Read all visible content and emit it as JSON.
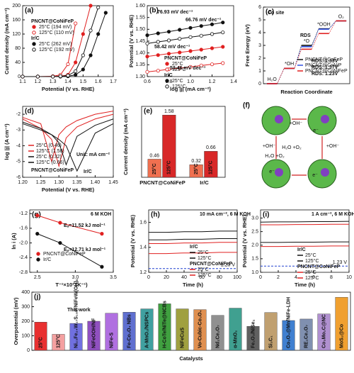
{
  "chart_data": [
    {
      "type": "line",
      "label": "(a)",
      "xlabel": "Potential (V vs. RHE)",
      "ylabel": "Current density (mA cm⁻²)",
      "xlim": [
        1.1,
        1.7
      ],
      "xticks": [
        1.1,
        1.2,
        1.3,
        1.4,
        1.5,
        1.6,
        1.7
      ],
      "ylim": [
        0,
        200
      ],
      "yticks": [
        0,
        40,
        80,
        120,
        160,
        200
      ],
      "x": [
        1.1,
        1.2,
        1.3,
        1.35,
        1.4,
        1.45,
        1.5,
        1.55,
        1.6,
        1.65,
        1.7
      ],
      "legend_groups": [
        "PNCNT@CoNiFeP",
        "Ir/C"
      ],
      "series": [
        {
          "name": "25°C (194 mV)",
          "color": "#e02020",
          "marker": "filled",
          "values": [
            0,
            0,
            0,
            1,
            5,
            40,
            120,
            200,
            null,
            null,
            null
          ]
        },
        {
          "name": "125°C (110 mV)",
          "color": "#e02020",
          "marker": "open",
          "values": [
            0,
            0,
            1,
            5,
            35,
            150,
            null,
            null,
            null,
            null,
            null
          ]
        },
        {
          "name": "25°C (262 mV)",
          "color": "#111111",
          "marker": "filled",
          "values": [
            0,
            0,
            0,
            0,
            1,
            5,
            20,
            60,
            120,
            180,
            null
          ]
        },
        {
          "name": "125°C (192 mV)",
          "color": "#111111",
          "marker": "open",
          "values": [
            0,
            0,
            0,
            1,
            3,
            15,
            60,
            130,
            195,
            null,
            null
          ]
        }
      ]
    },
    {
      "type": "scatter",
      "label": "(b)",
      "xlabel": "log |j| (mA cm⁻²)",
      "ylabel": "Potential (V vs. RHE)",
      "xlim": [
        0.6,
        1.4
      ],
      "xticks": [
        0.6,
        0.8,
        {
          "value": 1,
          "label": "1.0"
        },
        1.2,
        1.4
      ],
      "ylim": [
        1.3,
        1.6
      ],
      "yticks": [
        {
          "value": 1.3,
          "label": "1.30"
        },
        1.35,
        {
          "value": 1.4,
          "label": "1.40"
        },
        1.45,
        {
          "value": 1.5,
          "label": "1.50"
        },
        1.55,
        {
          "value": 1.6,
          "label": "1.60"
        }
      ],
      "x": [
        0.6,
        0.7,
        0.8,
        0.9,
        1.0,
        1.1,
        1.2,
        1.3
      ],
      "legend_groups": [
        "PNCNT@CoNiFeP",
        "Ir/C"
      ],
      "annotations": [
        {
          "text": "76.93 mV dec⁻¹",
          "color": "#111111"
        },
        {
          "text": "66.76 mV dec⁻¹",
          "color": "#111111"
        },
        {
          "text": "58.42 mV dec⁻¹",
          "color": "#e02020"
        },
        {
          "text": "53.46 mV dec⁻¹",
          "color": "#e02020"
        }
      ],
      "series": [
        {
          "name": "25°C",
          "color": "#e02020",
          "marker": "filled",
          "values": [
            1.385,
            1.391,
            1.397,
            1.402,
            1.408,
            1.414,
            1.42,
            1.426
          ]
        },
        {
          "name": "125°C",
          "color": "#e02020",
          "marker": "open",
          "values": [
            1.32,
            1.325,
            1.331,
            1.336,
            1.341,
            1.347,
            1.352,
            1.357
          ]
        },
        {
          "name": "25°C",
          "color": "#111111",
          "marker": "filled",
          "values": [
            1.475,
            1.483,
            1.49,
            1.498,
            1.506,
            1.514,
            1.521,
            1.529
          ]
        },
        {
          "name": "125°C",
          "color": "#111111",
          "marker": "open",
          "values": [
            1.44,
            1.447,
            1.453,
            1.46,
            1.467,
            1.473,
            1.48,
            1.487
          ]
        }
      ]
    },
    {
      "type": "step",
      "label": "(c)",
      "xlabel": "Reaction Coordinate",
      "ylabel": "Free Energy (eV)",
      "categories": [
        "H₂O",
        "*OH",
        "*O",
        "*OOH",
        "O₂"
      ],
      "ylim": [
        0,
        6
      ],
      "yticks": [
        0,
        1,
        2,
        3,
        4,
        5,
        6
      ],
      "annotations": [
        {
          "text": "Co site",
          "color": "#111111"
        },
        {
          "text": "RDS",
          "color": "#111111"
        },
        {
          "text": "RDS: 1.33V",
          "color": "#e040c0"
        },
        {
          "text": "RDS: 1.37V",
          "color": "#3050e0"
        },
        {
          "text": "RDS: 1.23V",
          "color": "#e02020"
        }
      ],
      "series": [
        {
          "name": "PNCNT@CoFeP",
          "color": "#111111",
          "values": [
            0,
            1.2,
            3.0,
            4.3,
            4.92
          ]
        },
        {
          "name": "PNCNT@CoNiP",
          "color": "#3050e0",
          "values": [
            0,
            1.2,
            2.9,
            4.27,
            4.92
          ]
        },
        {
          "name": "PNCNT@CoNiFeP",
          "color": "#e02020",
          "values": [
            0,
            1.2,
            2.7,
            3.93,
            4.92
          ]
        }
      ]
    },
    {
      "type": "line",
      "label": "(d)",
      "xlabel": "Potential (V vs. RHE)",
      "ylabel": "log |j| (A cm⁻²)",
      "xlim": [
        1.2,
        1.45
      ],
      "xticks": [
        {
          "value": 1.2,
          "label": "1.20"
        },
        1.25,
        {
          "value": 1.3,
          "label": "1.30"
        },
        1.35,
        {
          "value": 1.4,
          "label": "1.40"
        },
        1.45
      ],
      "ylim": [
        -6,
        -1.5
      ],
      "yticks": [
        -6,
        -5,
        -4,
        -3,
        -2
      ],
      "x": [
        1.2,
        1.25,
        1.28,
        1.3,
        1.32,
        1.35,
        1.4,
        1.45
      ],
      "annotations": [
        {
          "text": "PNCNT@CoNiFeP",
          "color": "#111111"
        },
        {
          "text": "Ir/C",
          "color": "#111111"
        },
        {
          "text": "Unit: mA cm⁻²",
          "color": "#111111"
        }
      ],
      "series": [
        {
          "name": "25°C (0.46)",
          "color": "#e02020",
          "values": [
            -2.3,
            -2.9,
            -3.6,
            -5.3,
            -3.5,
            -2.8,
            -2.3,
            -2.0
          ]
        },
        {
          "name": "125°C (1.58)",
          "color": "#e02020",
          "values": [
            -2.2,
            -2.6,
            -5.0,
            -3.3,
            -2.8,
            -2.4,
            -2.0,
            -1.8
          ]
        },
        {
          "name": "25°C (0.32)",
          "color": "#111111",
          "values": [
            -2.6,
            -3.0,
            -3.3,
            -3.6,
            -4.0,
            -5.6,
            -3.2,
            -2.6
          ]
        },
        {
          "name": "125°C (0.66)",
          "color": "#111111",
          "values": [
            -2.5,
            -2.9,
            -3.3,
            -3.8,
            -5.2,
            -3.4,
            -2.7,
            -2.3
          ]
        }
      ]
    },
    {
      "type": "bar",
      "label": "(e)",
      "ylabel": "Current density (mA cm⁻²)",
      "categories": [
        "PNCNT@CoNiFeP",
        "Ir/C"
      ],
      "ylim": [
        0,
        1.8
      ],
      "series": [
        {
          "name": "25°C",
          "color": "#f07050",
          "values": [
            0.46,
            0.32
          ]
        },
        {
          "name": "125°C",
          "color": "#d82828",
          "values": [
            1.58,
            0.66
          ]
        }
      ]
    },
    {
      "type": "diagram",
      "label": "(f)",
      "labels": [
        "+OH⁻",
        "e⁻",
        "H₂O +O₂",
        "+OH⁻",
        "+OH⁻",
        "e⁻",
        "H₂O +O₂",
        "e⁻"
      ]
    },
    {
      "type": "scatter",
      "label": "(g)",
      "xlabel": "T⁻¹×10³ (K⁻¹)",
      "ylabel": "ln i (A)",
      "xlim": [
        2.4,
        3.5
      ],
      "xticks": [
        2.5,
        {
          "value": 3,
          "label": "3.0"
        },
        3.5
      ],
      "ylim": [
        -2.8,
        -1.1
      ],
      "yticks": [
        -2.8,
        -2.4,
        {
          "value": -2,
          "label": "-2.0"
        },
        -1.6,
        -1.2
      ],
      "x": [
        2.5,
        2.8,
        3.35
      ],
      "annotations": [
        {
          "text": "6 M KOH",
          "color": "#111111"
        },
        {
          "text": "Eₐ=11.52 kJ mol⁻¹",
          "color": "#e02020"
        },
        {
          "text": "Eₐ=12.71 kJ mol⁻¹",
          "color": "#111111"
        }
      ],
      "series": [
        {
          "name": "PNCNT@CoNiFeP",
          "color": "#e02020",
          "marker": "filled",
          "values": [
            -1.25,
            -1.45,
            -1.75
          ]
        },
        {
          "name": "Ir/C",
          "color": "#111111",
          "marker": "filled",
          "values": [
            -1.75,
            -2.0,
            -2.65
          ]
        }
      ]
    },
    {
      "type": "line",
      "label": "(h)",
      "xlabel": "Time (h)",
      "ylabel": "Potential (V vs. RHE)",
      "xlim": [
        0,
        100
      ],
      "xticks": [
        0,
        20,
        40,
        60,
        80,
        100
      ],
      "ylim": [
        1.2,
        1.7
      ],
      "yticks": [
        {
          "value": 1.2,
          "label": "1.2"
        },
        1.4,
        1.6
      ],
      "x": [
        0,
        20,
        40,
        60,
        80,
        100
      ],
      "ref_line": {
        "value": 1.23,
        "label": "1.23 V"
      },
      "legend_groups": [
        "Ir/C",
        "PNCNT@CoNiFeP"
      ],
      "annotations": [
        {
          "text": "10 mA cm⁻², 6 M KOH",
          "color": "#111111"
        }
      ],
      "series": [
        {
          "name": "25°C",
          "color": "#111111",
          "values": [
            1.52,
            1.52,
            1.525,
            1.525,
            1.53,
            1.53
          ]
        },
        {
          "name": "125°C",
          "color": "#111111",
          "values": [
            1.46,
            1.46,
            1.465,
            1.465,
            1.47,
            1.47
          ]
        },
        {
          "name": "25°C",
          "color": "#e02020",
          "values": [
            1.43,
            1.43,
            1.435,
            1.435,
            1.44,
            1.44
          ]
        },
        {
          "name": "125°C",
          "color": "#e02020",
          "values": [
            1.35,
            1.35,
            1.355,
            1.355,
            1.36,
            1.36
          ]
        }
      ]
    },
    {
      "type": "line",
      "label": "(i)",
      "xlabel": "Time (h)",
      "ylabel": "Potential (V vs. RHE)",
      "xlim": [
        0,
        10
      ],
      "xticks": [
        0,
        2,
        4,
        6,
        8,
        10
      ],
      "ylim": [
        1,
        3.3
      ],
      "yticks": [
        {
          "value": 1,
          "label": "1.0"
        },
        1.5,
        {
          "value": 2,
          "label": "2.0"
        },
        2.5,
        {
          "value": 3,
          "label": "3.0"
        }
      ],
      "x": [
        0,
        2,
        4,
        6,
        8,
        10
      ],
      "ref_line": {
        "value": 1.23,
        "label": "1.23 V"
      },
      "legend_groups": [
        "Ir/C",
        "PNCNT@CoNiFeP"
      ],
      "annotations": [
        {
          "text": "1 A cm⁻², 6 M KOH",
          "color": "#111111"
        }
      ],
      "series": [
        {
          "name": "25°C",
          "color": "#111111",
          "values": [
            2.85,
            2.86,
            2.86,
            2.87,
            2.87,
            2.88
          ]
        },
        {
          "name": "125°C",
          "color": "#111111",
          "values": [
            2.1,
            2.1,
            2.11,
            2.11,
            2.12,
            2.12
          ]
        },
        {
          "name": "25°C",
          "color": "#e02020",
          "values": [
            2.75,
            2.75,
            2.76,
            2.76,
            2.77,
            2.77
          ]
        },
        {
          "name": "125°C",
          "color": "#e02020",
          "values": [
            1.95,
            1.95,
            1.96,
            1.96,
            1.97,
            1.97
          ]
        }
      ]
    },
    {
      "type": "bar",
      "label": "(j)",
      "xlabel": "Catalysts",
      "ylabel": "Overpotential (mV)",
      "ylim": [
        0,
        400
      ],
      "yticks": [
        0,
        100,
        200,
        300,
        400
      ],
      "annotations": [
        {
          "text": "This work",
          "color": "#111111"
        }
      ],
      "categories": [
        "25°C",
        "125°C",
        "Ni₂₃Fe₂₄W₁₇S₁₅@NiFeW(OH)ₓ",
        "NiFeOOH/NF",
        "NiFe-S",
        "Fe-Co₃O₄ NBs",
        "A-MnO₂/NSPCs",
        "H-CoTe/NiTe@NCBs",
        "NiFeCuS",
        "Vo-Cubic-Co₃O₄",
        "Nd₂Ce₂O₇",
        "α-MnO₂",
        "Fe₂O₃/NiSe₂",
        "Si₃C₁",
        "Co₃O₄@Mn/NiFe-LDH",
        "RE₂Ce₂O₇",
        "Co₃Mo₂C@NC",
        "MoS₂@Co"
      ],
      "values": [
        194,
        110,
        185,
        200,
        255,
        262,
        285,
        320,
        285,
        280,
        240,
        290,
        165,
        260,
        205,
        215,
        250,
        365
      ],
      "colors": [
        "#e83030",
        "#f4a0a0",
        "#7070e0",
        "#9050c0",
        "#b070e0",
        "#6070d0",
        "#40a0a0",
        "#40a040",
        "#a0a040",
        "#e09050",
        "#909090",
        "#40a090",
        "#606060",
        "#c0a070",
        "#4080d0",
        "#8090b0",
        "#b090d0",
        "#f0a030"
      ]
    }
  ]
}
